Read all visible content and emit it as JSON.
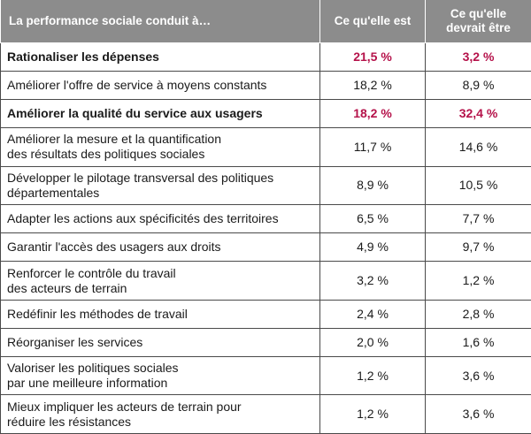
{
  "header": {
    "col_label": "La performance sociale conduit à…",
    "col_current": "Ce qu'elle est",
    "col_target_line1": "Ce qu'elle",
    "col_target_line2": "devrait être"
  },
  "rows": [
    {
      "label1": "Rationaliser les dépenses",
      "label2": "",
      "current": "21,5 %",
      "target": "3,2 %"
    },
    {
      "label1": "Améliorer l'offre de service à moyens constants",
      "label2": "",
      "current": "18,2 %",
      "target": "8,9 %"
    },
    {
      "label1": "Améliorer la qualité du service aux usagers",
      "label2": "",
      "current": "18,2 %",
      "target": "32,4 %"
    },
    {
      "label1": "Améliorer la mesure et la quantification",
      "label2": "des résultats des politiques sociales",
      "current": "11,7 %",
      "target": "14,6 %"
    },
    {
      "label1": "Développer le pilotage transversal des politiques",
      "label2": "départementales",
      "current": "8,9 %",
      "target": "10,5 %"
    },
    {
      "label1": "Adapter les actions aux spécificités des territoires",
      "label2": "",
      "current": "6,5 %",
      "target": "7,7 %"
    },
    {
      "label1": "Garantir l'accès des usagers aux droits",
      "label2": "",
      "current": "4,9 %",
      "target": "9,7 %"
    },
    {
      "label1": "Renforcer le contrôle du travail",
      "label2": "des acteurs de terrain",
      "current": "3,2 %",
      "target": "1,2 %"
    },
    {
      "label1": "Redéfinir les méthodes de travail",
      "label2": "",
      "current": "2,4 %",
      "target": "2,8 %"
    },
    {
      "label1": "Réorganiser les services",
      "label2": "",
      "current": "2,0 %",
      "target": "1,6 %"
    },
    {
      "label1": "Valoriser les politiques sociales",
      "label2": "par une meilleure information",
      "current": "1,2 %",
      "target": "3,6 %"
    },
    {
      "label1": "Mieux impliquer les acteurs de terrain pour",
      "label2": "réduire les résistances",
      "current": "1,2 %",
      "target": "3,6 %"
    }
  ],
  "colors": {
    "header_bg": "#8c8c8c",
    "accent": "#b5124a",
    "border": "#4a4a4a"
  }
}
